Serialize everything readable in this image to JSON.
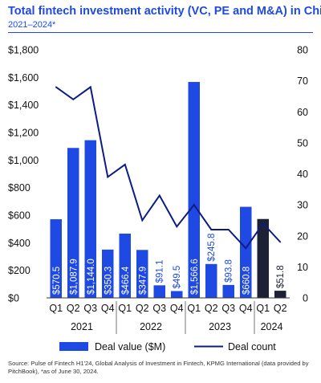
{
  "title": "Total fintech investment activity (VC, PE and M&A) in China",
  "subtitle": "2021–2024*",
  "source": "Source: Pulse of Fintech H1'24, Global Analysis of Investment in Fintech, KPMG International (data provided by PitchBook), *as of June 30, 2024.",
  "colors": {
    "bar": "#1e49e2",
    "bar_highlight": "#1c2135",
    "line": "#0c1c84",
    "title": "#1e49e2"
  },
  "chart_data": {
    "type": "bar",
    "categories": [
      "Q1",
      "Q2",
      "Q3",
      "Q4",
      "Q1",
      "Q2",
      "Q3",
      "Q4",
      "Q1",
      "Q2",
      "Q3",
      "Q4",
      "Q1",
      "Q2"
    ],
    "years": [
      {
        "label": "2021",
        "span": [
          0,
          3
        ]
      },
      {
        "label": "2022",
        "span": [
          4,
          7
        ]
      },
      {
        "label": "2023",
        "span": [
          8,
          11
        ]
      },
      {
        "label": "2024",
        "span": [
          12,
          13
        ]
      }
    ],
    "series": [
      {
        "name": "Deal value ($M)",
        "type": "bar",
        "axis": "left",
        "values": [
          570.5,
          1087.9,
          1144.0,
          350.3,
          466.4,
          347.9,
          91.1,
          49.5,
          1566.6,
          245.8,
          93.8,
          660.8,
          572.4,
          51.8
        ],
        "labels": [
          "$570.5",
          "$1,087.9",
          "$1,144.0",
          "$350.3",
          "$466.4",
          "$347.9",
          "$91.1",
          "$49.5",
          "$1,566.6",
          "$245.8",
          "$93.8",
          "$660.8",
          "",
          "$51.8"
        ],
        "highlight": [
          12,
          13
        ]
      },
      {
        "name": "Deal count",
        "type": "line",
        "axis": "right",
        "values": [
          68,
          64,
          68,
          39,
          43,
          25,
          33,
          23,
          30,
          22,
          22,
          16,
          24,
          18
        ]
      }
    ],
    "left_axis": {
      "ylim": [
        0,
        1800
      ],
      "ticks": [
        0,
        200,
        400,
        600,
        800,
        1000,
        1200,
        1400,
        1600,
        1800
      ],
      "tick_labels": [
        "$0",
        "$200",
        "$400",
        "$600",
        "$800",
        "$1,000",
        "$1,200",
        "$1,400",
        "$1,600",
        "$1,800"
      ]
    },
    "right_axis": {
      "ylim": [
        0,
        80
      ],
      "ticks": [
        0,
        10,
        20,
        30,
        40,
        50,
        60,
        70,
        80
      ],
      "tick_labels": [
        "0",
        "10",
        "20",
        "30",
        "40",
        "50",
        "60",
        "70",
        "80"
      ]
    },
    "grid": false,
    "legend": {
      "placement": "bottom",
      "items": [
        {
          "label": "Deal value ($M)",
          "kind": "bar"
        },
        {
          "label": "Deal count",
          "kind": "line"
        }
      ]
    }
  }
}
